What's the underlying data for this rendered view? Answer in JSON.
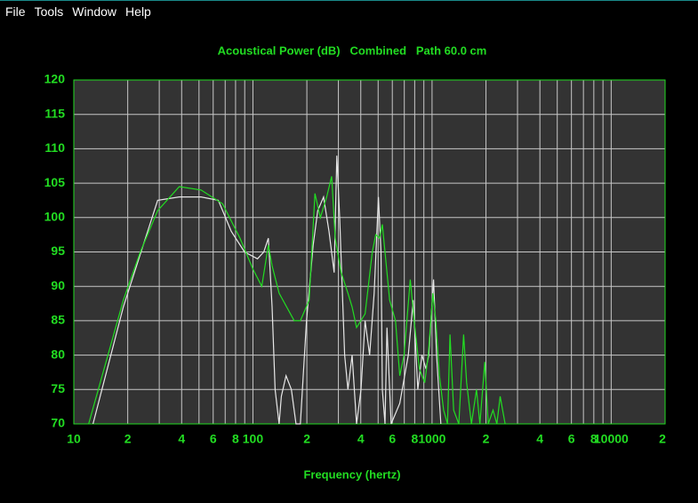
{
  "menu": [
    "File",
    "Tools",
    "Window",
    "Help"
  ],
  "chart_data": {
    "type": "line",
    "title": "Acoustical Power (dB)   Combined   Path 60.0 cm",
    "x_label": "Frequency (hertz)",
    "log_x": true,
    "grid": true,
    "xlim": [
      10,
      20000
    ],
    "xticks": [
      10,
      {
        "value": 20,
        "label": "2"
      },
      {
        "value": 40,
        "label": "4"
      },
      {
        "value": 60,
        "label": "6"
      },
      {
        "value": 80,
        "label": "8"
      },
      100,
      {
        "value": 200,
        "label": "2"
      },
      {
        "value": 400,
        "label": "4"
      },
      {
        "value": 600,
        "label": "6"
      },
      {
        "value": 800,
        "label": "8"
      },
      1000,
      {
        "value": 2000,
        "label": "2"
      },
      {
        "value": 4000,
        "label": "4"
      },
      {
        "value": 6000,
        "label": "6"
      },
      {
        "value": 8000,
        "label": "8"
      },
      10000,
      {
        "value": 20000,
        "label": "2"
      }
    ],
    "xminor": [
      30,
      50,
      70,
      90,
      300,
      500,
      700,
      900,
      3000,
      5000,
      7000,
      9000
    ],
    "ylim": [
      70,
      120
    ],
    "yticks": [
      70,
      75,
      80,
      85,
      90,
      95,
      100,
      105,
      110,
      115,
      120
    ],
    "series": [
      {
        "color": "#22dd22",
        "x": [
          12.1,
          18.9,
          23.5,
          29.4,
          38.8,
          51.3,
          67.7,
          84.7,
          100,
          112,
          122,
          128,
          140,
          170,
          184,
          206,
          222,
          238,
          258,
          275,
          288,
          311,
          339,
          358,
          379,
          423,
          464,
          485,
          509,
          528,
          580,
          625,
          660,
          698,
          756,
          795,
          850,
          910,
          952,
          1010,
          1050,
          1100,
          1160,
          1220,
          1260,
          1320,
          1410,
          1500,
          1560,
          1660,
          1770,
          1850,
          1970,
          2060,
          2190,
          2300,
          2400,
          2560
        ],
        "values": [
          70,
          88,
          95,
          101,
          104.5,
          104,
          102,
          97,
          92.5,
          90,
          96,
          93,
          89,
          85,
          85,
          88,
          103.5,
          100,
          103,
          106,
          97,
          92,
          89,
          87,
          84,
          86,
          95,
          97.5,
          97,
          99,
          88,
          85,
          77,
          80,
          91,
          85,
          78,
          76,
          80,
          89,
          85,
          77,
          72,
          70,
          83,
          72,
          70,
          83,
          76,
          70,
          75,
          70,
          79,
          70,
          72,
          70,
          74,
          70
        ]
      },
      {
        "color": "#e8e8e8",
        "x": [
          12.8,
          18.9,
          29.4,
          38.8,
          51.3,
          64.1,
          75.7,
          89.8,
          106,
          115,
          122,
          128,
          133,
          140,
          144,
          153,
          164,
          174,
          184,
          199,
          217,
          230,
          248,
          266,
          284,
          294,
          305,
          325,
          339,
          358,
          379,
          401,
          423,
          448,
          475,
          502,
          519,
          528,
          546,
          560,
          591,
          660,
          737,
          785,
          833,
          878,
          925,
          959,
          1020,
          1060,
          1120
        ],
        "values": [
          70,
          87,
          102.5,
          103,
          103,
          102.5,
          98,
          95,
          94,
          95,
          97,
          87,
          75,
          70,
          74,
          77,
          75,
          70,
          70,
          85,
          96,
          101,
          103,
          98,
          92,
          109,
          100,
          80,
          75,
          80,
          70,
          75,
          85,
          80,
          89,
          103,
          95,
          75,
          70,
          84,
          70,
          73,
          80,
          88,
          75,
          80,
          78,
          80,
          91,
          80,
          70
        ]
      }
    ]
  }
}
